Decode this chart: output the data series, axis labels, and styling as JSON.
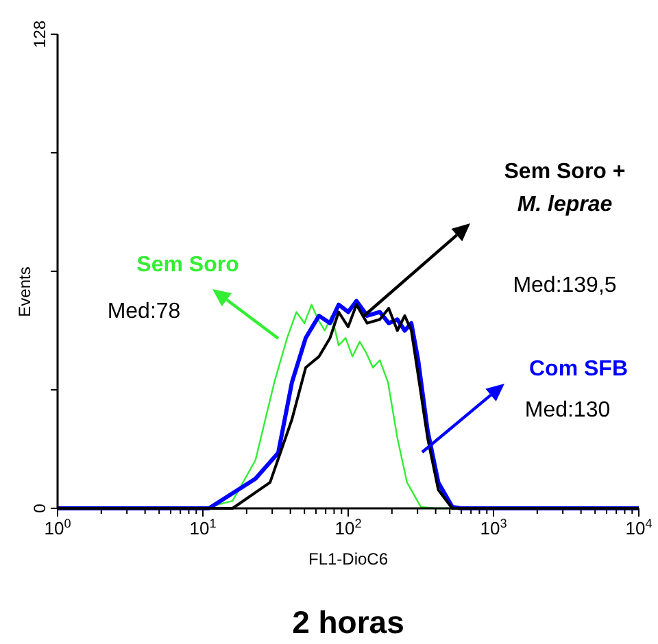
{
  "chart_data": {
    "type": "line",
    "title": "2 horas",
    "xlabel": "FL1-DioC6",
    "ylabel": "Events",
    "log": "x",
    "xlim": [
      1,
      10000
    ],
    "ylim": [
      0,
      128
    ],
    "xticks": [
      {
        "value": 1,
        "label": "10$^{0}$"
      },
      {
        "value": 2,
        "label": null
      },
      {
        "value": 3,
        "label": null
      },
      {
        "value": 4,
        "label": null
      },
      {
        "value": 5,
        "label": null
      },
      {
        "value": 6,
        "label": null
      },
      {
        "value": 7,
        "label": null
      },
      {
        "value": 8,
        "label": null
      },
      {
        "value": 9,
        "label": null
      },
      {
        "value": 10,
        "label": "10$^{1}$"
      },
      {
        "value": 20,
        "label": null
      },
      {
        "value": 30,
        "label": null
      },
      {
        "value": 40,
        "label": null
      },
      {
        "value": 50,
        "label": null
      },
      {
        "value": 60,
        "label": null
      },
      {
        "value": 70,
        "label": null
      },
      {
        "value": 80,
        "label": null
      },
      {
        "value": 90,
        "label": null
      },
      {
        "value": 100,
        "label": "10$^{2}$"
      },
      {
        "value": 200,
        "label": null
      },
      {
        "value": 300,
        "label": null
      },
      {
        "value": 400,
        "label": null
      },
      {
        "value": 500,
        "label": null
      },
      {
        "value": 600,
        "label": null
      },
      {
        "value": 700,
        "label": null
      },
      {
        "value": 800,
        "label": null
      },
      {
        "value": 900,
        "label": null
      },
      {
        "value": 1000,
        "label": "10$^{3}$"
      },
      {
        "value": 2000,
        "label": null
      },
      {
        "value": 3000,
        "label": null
      },
      {
        "value": 4000,
        "label": null
      },
      {
        "value": 5000,
        "label": null
      },
      {
        "value": 6000,
        "label": null
      },
      {
        "value": 7000,
        "label": null
      },
      {
        "value": 8000,
        "label": null
      },
      {
        "value": 9000,
        "label": null
      },
      {
        "value": 10000,
        "label": "10$^{4}$"
      }
    ],
    "yticks": [
      0,
      {
        "value": 32,
        "label": null
      },
      {
        "value": 64,
        "label": null
      },
      {
        "value": 96,
        "label": null
      },
      128
    ],
    "grid": false,
    "marker": "none",
    "line_style": "solid",
    "series": [
      {
        "name": "Sem Soro",
        "color": "#33ee33",
        "x": [
          1,
          10,
          16,
          23,
          31,
          38,
          44,
          50,
          56,
          62,
          69,
          77,
          86,
          96,
          107,
          120,
          133,
          148,
          165,
          188,
          218,
          254,
          316,
          400,
          10000
        ],
        "values": [
          0,
          0,
          2,
          13,
          34,
          46,
          53,
          50,
          55,
          51,
          48,
          52,
          44,
          46,
          41,
          45,
          42,
          38,
          40,
          34,
          19,
          7,
          0.4,
          0,
          0
        ]
      },
      {
        "name": "Com SFB",
        "color": "#0000ff",
        "x": [
          1,
          11,
          23,
          33,
          41,
          51,
          63,
          75,
          86,
          100,
          114,
          135,
          165,
          190,
          218,
          245,
          272,
          303,
          352,
          417,
          520,
          600,
          10000
        ],
        "values": [
          0,
          0,
          8,
          15,
          34,
          46,
          52,
          50,
          55,
          53,
          56,
          52,
          53,
          50,
          51,
          48,
          50,
          40,
          21,
          7,
          0.4,
          0,
          0
        ]
      },
      {
        "name": "Sem Soro + M. leprae",
        "color": "#000000",
        "x": [
          1,
          16,
          29,
          41,
          51,
          63,
          75,
          86,
          100,
          114,
          135,
          165,
          190,
          218,
          245,
          272,
          303,
          352,
          417,
          520,
          10000
        ],
        "values": [
          0,
          0,
          7,
          24,
          38,
          41,
          46,
          53,
          49,
          55,
          50,
          51,
          54,
          48,
          52,
          48,
          36,
          19,
          5,
          0,
          0
        ]
      }
    ],
    "annotations": [
      "Med:78",
      "Med:130",
      "Med:139,5"
    ]
  }
}
